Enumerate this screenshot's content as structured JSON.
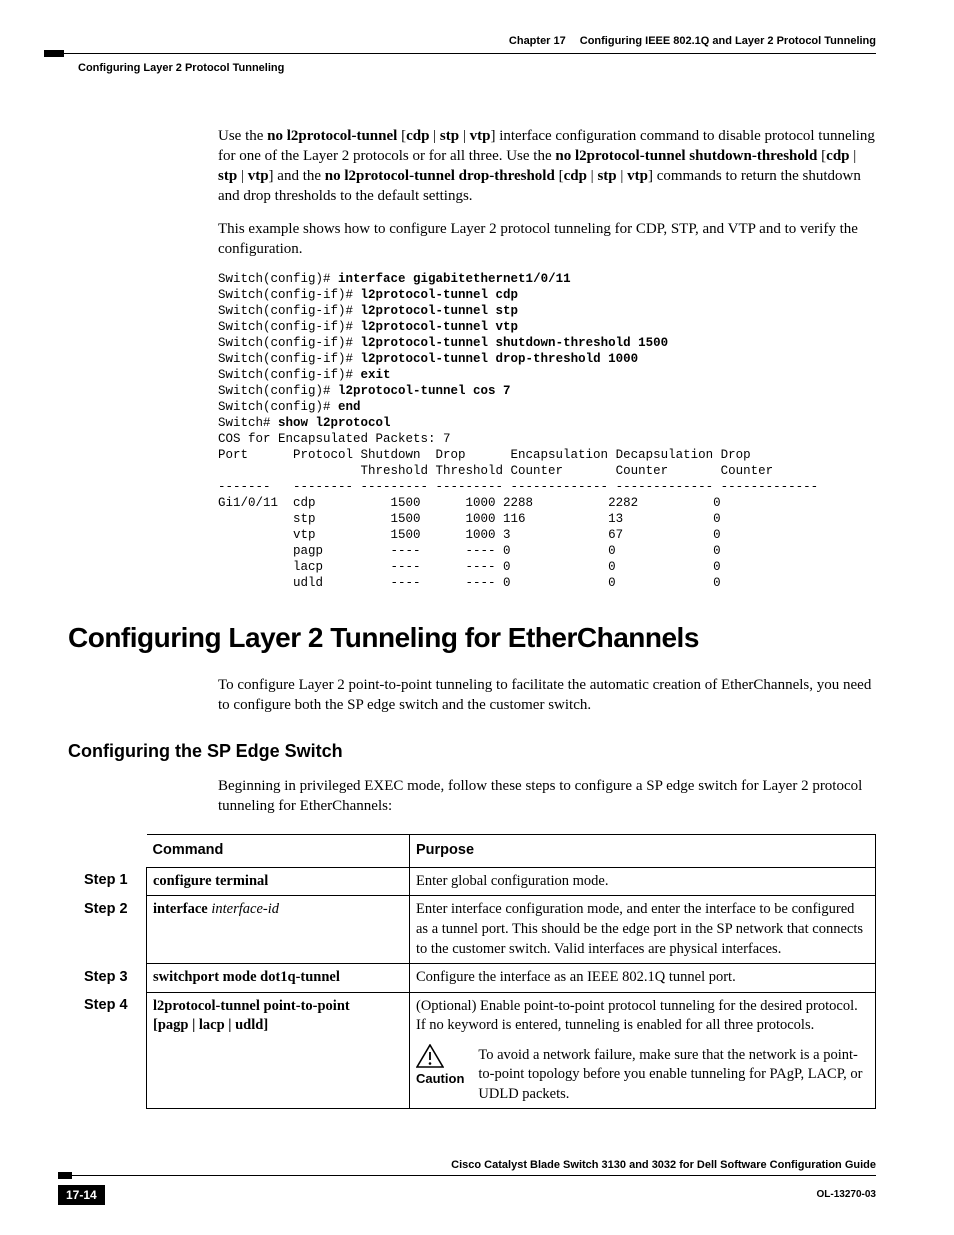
{
  "header": {
    "chapter_label": "Chapter 17",
    "chapter_title": "Configuring IEEE 802.1Q and Layer 2 Protocol Tunneling",
    "section_label": "Configuring Layer 2 Protocol Tunneling"
  },
  "intro": {
    "para1_pre": "Use the ",
    "para1_cmd1": "no l2protocol-tunnel",
    "para1_br1": " [",
    "para1_opt1": "cdp",
    "para1_pipe": " | ",
    "para1_opt2": "stp",
    "para1_opt3": "vtp",
    "para1_br2": "] interface configuration command to disable protocol tunneling for one of the Layer 2 protocols or for all three. Use the ",
    "para1_cmd2": "no l2protocol-tunnel shutdown-threshold",
    "para1_mid": " [",
    "para1_mid2": "] and the ",
    "para1_cmd3": "no l2protocol-tunnel drop-threshold",
    "para1_end": "] commands to return the shutdown and drop thresholds to the default settings.",
    "para2": "This example shows how to configure Layer 2 protocol tunneling for CDP, STP, and VTP and to verify the configuration."
  },
  "terminal": {
    "lines": [
      {
        "prompt": "Switch(config)# ",
        "cmd": "interface gigabitethernet1/0/11"
      },
      {
        "prompt": "Switch(config-if)# ",
        "cmd": "l2protocol-tunnel cdp"
      },
      {
        "prompt": "Switch(config-if)# ",
        "cmd": "l2protocol-tunnel stp"
      },
      {
        "prompt": "Switch(config-if)# ",
        "cmd": "l2protocol-tunnel vtp"
      },
      {
        "prompt": "Switch(config-if)# ",
        "cmd": "l2protocol-tunnel shutdown-threshold 1500"
      },
      {
        "prompt": "Switch(config-if)# ",
        "cmd": "l2protocol-tunnel drop-threshold 1000"
      },
      {
        "prompt": "Switch(config-if)# ",
        "cmd": "exit"
      },
      {
        "prompt": "Switch(config)# ",
        "cmd": "l2protocol-tunnel cos 7"
      },
      {
        "prompt": "Switch(config)# ",
        "cmd": "end"
      },
      {
        "prompt": "Switch# ",
        "cmd": "show l2protocol"
      }
    ],
    "cos_line": "COS for Encapsulated Packets: 7",
    "hdr1": "Port      Protocol Shutdown  Drop      Encapsulation Decapsulation Drop",
    "hdr2": "                   Threshold Threshold Counter       Counter       Counter",
    "sep": "-------   -------- --------- --------- ------------- ------------- -------------",
    "rows": [
      "Gi1/0/11  cdp          1500      1000 2288          2282          0",
      "          stp          1500      1000 116           13            0",
      "          vtp          1500      1000 3             67            0",
      "          pagp         ----      ---- 0             0             0",
      "          lacp         ----      ---- 0             0             0",
      "          udld         ----      ---- 0             0             0"
    ]
  },
  "h1": "Configuring Layer 2 Tunneling for EtherChannels",
  "h1_para": "To configure Layer 2 point-to-point tunneling to facilitate the automatic creation of EtherChannels, you need to configure both the SP edge switch and the customer switch.",
  "h2": "Configuring the SP Edge Switch",
  "h2_para": "Beginning in privileged EXEC mode, follow these steps to configure a SP edge switch for Layer 2 protocol tunneling for EtherChannels:",
  "table": {
    "head_command": "Command",
    "head_purpose": "Purpose",
    "steps": [
      {
        "num": "Step 1",
        "cmd_bold": "configure terminal",
        "cmd_ital": "",
        "cmd_tail": "",
        "purpose": "Enter global configuration mode."
      },
      {
        "num": "Step 2",
        "cmd_bold": "interface",
        "cmd_ital": " interface-id",
        "cmd_tail": "",
        "purpose": "Enter interface configuration mode, and enter the interface to be configured as a tunnel port. This should be the edge port in the SP network that connects to the customer switch. Valid interfaces are physical interfaces."
      },
      {
        "num": "Step 3",
        "cmd_bold": "switchport mode dot1q-tunnel",
        "cmd_ital": "",
        "cmd_tail": "",
        "purpose": "Configure the interface as an IEEE 802.1Q tunnel port."
      },
      {
        "num": "Step 4",
        "cmd_bold": "l2protocol-tunnel point-to-point",
        "cmd_ital": "",
        "cmd_tail_line2": "[pagp | lacp | udld]",
        "purpose": "(Optional) Enable point-to-point protocol tunneling for the desired protocol. If no keyword is entered, tunneling is enabled for all three protocols.",
        "caution_label": "Caution",
        "caution_text": "To avoid a network failure, make sure that the network is a point-to-point topology before you enable tunneling for PAgP, LACP, or UDLD packets."
      }
    ]
  },
  "footer": {
    "book_title": "Cisco Catalyst Blade Switch 3130 and 3032 for Dell Software Configuration Guide",
    "page_num": "17-14",
    "doc_id": "OL-13270-03"
  },
  "colors": {
    "text": "#000000",
    "bg": "#ffffff"
  }
}
